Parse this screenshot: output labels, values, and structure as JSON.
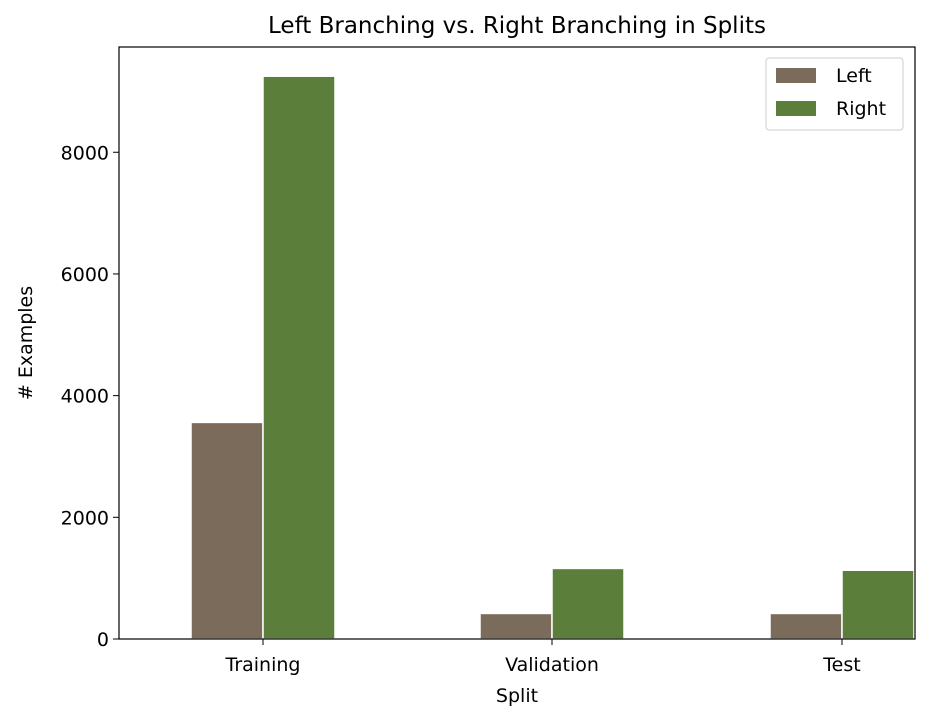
{
  "chart_data": {
    "type": "bar",
    "title": "Left Branching vs. Right Branching in Splits",
    "xlabel": "Split",
    "ylabel": "# Examples",
    "categories": [
      "Training",
      "Validation",
      "Test"
    ],
    "series": [
      {
        "name": "Left",
        "values": [
          3560,
          420,
          420
        ],
        "color": "#7b6b5b"
      },
      {
        "name": "Right",
        "values": [
          9250,
          1160,
          1130
        ],
        "color": "#5b7f3a"
      }
    ],
    "ylim": [
      0,
      9730
    ],
    "yticks": [
      0,
      2000,
      4000,
      6000,
      8000
    ],
    "grid": false,
    "legend_position": "top-right"
  }
}
